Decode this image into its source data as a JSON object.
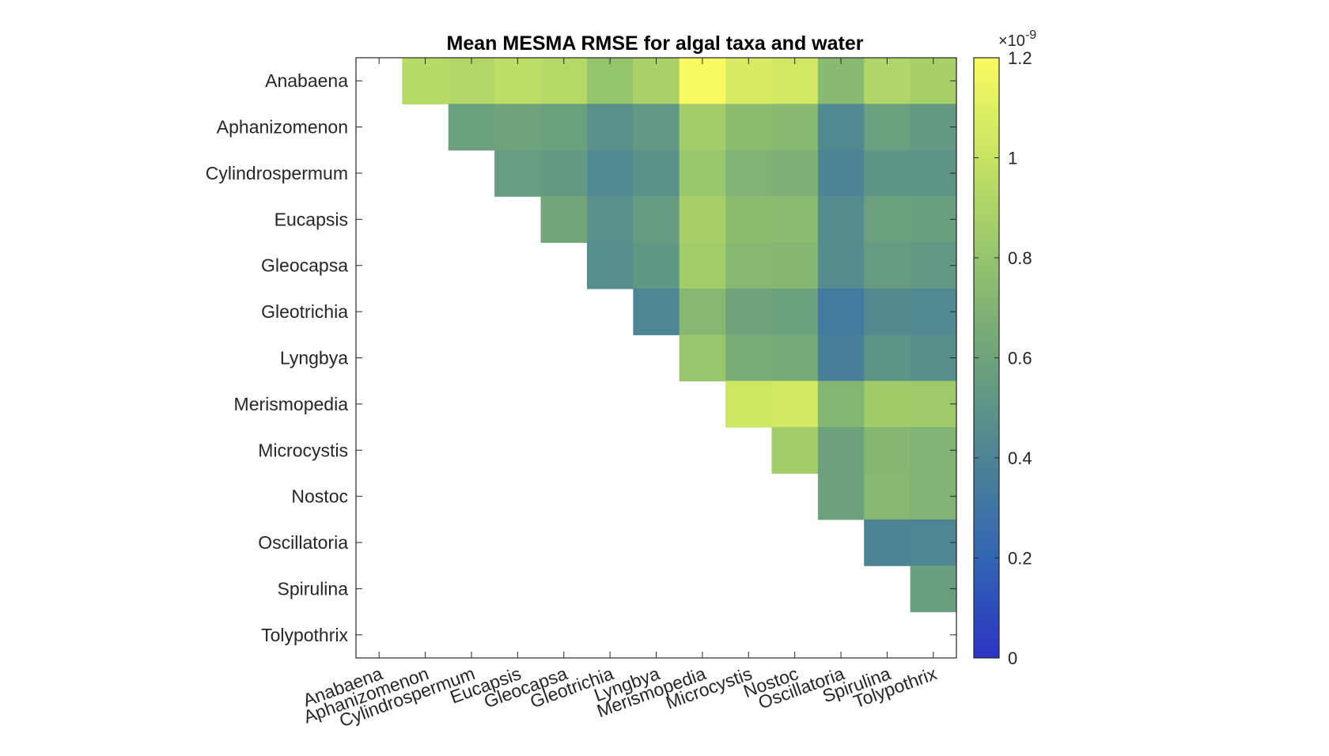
{
  "chart_data": {
    "type": "heatmap",
    "title": "Mean MESMA RMSE for algal taxa and water",
    "xlabel": "",
    "ylabel": "",
    "rows": [
      "Anabaena",
      "Aphanizomenon",
      "Cylindrospermum",
      "Eucapsis",
      "Gleocapsa",
      "Gleotrichia",
      "Lyngbya",
      "Merismopedia",
      "Microcystis",
      "Nostoc",
      "Oscillatoria",
      "Spirulina",
      "Tolypothrix"
    ],
    "columns": [
      "Anabaena",
      "Aphanizomenon",
      "Cylindrospermum",
      "Eucapsis",
      "Gleocapsa",
      "Gleotrichia",
      "Lyngbya",
      "Merismopedia",
      "Microcystis",
      "Nostoc",
      "Oscillatoria",
      "Spirulina",
      "Tolypothrix"
    ],
    "value_scale_label": "×10",
    "value_scale_exponent": "-9",
    "values_unit_multiplier": 1e-09,
    "colorbar": {
      "range": [
        0,
        1.2
      ],
      "ticks": [
        0,
        0.2,
        0.4,
        0.6,
        0.8,
        1,
        1.2
      ],
      "tick_labels": [
        "0",
        "0.2",
        "0.4",
        "0.6",
        "0.8",
        "1",
        "1.2"
      ],
      "colormap": [
        "#2c34c2",
        "#3166b3",
        "#4c8494",
        "#6ea37b",
        "#94c46c",
        "#c6e364",
        "#f9fb60"
      ]
    },
    "values": [
      [
        null,
        0.94,
        0.92,
        0.96,
        0.93,
        0.8,
        0.89,
        1.2,
        1.07,
        1.04,
        0.74,
        0.91,
        0.88
      ],
      [
        null,
        null,
        0.58,
        0.6,
        0.58,
        0.48,
        0.53,
        0.86,
        0.76,
        0.74,
        0.43,
        0.58,
        0.54
      ],
      [
        null,
        null,
        null,
        0.56,
        0.54,
        0.43,
        0.49,
        0.82,
        0.7,
        0.68,
        0.4,
        0.51,
        0.5
      ],
      [
        null,
        null,
        null,
        null,
        0.62,
        0.48,
        0.55,
        0.88,
        0.76,
        0.75,
        0.45,
        0.58,
        0.57
      ],
      [
        null,
        null,
        null,
        null,
        null,
        0.46,
        0.52,
        0.86,
        0.73,
        0.72,
        0.45,
        0.55,
        0.53
      ],
      [
        null,
        null,
        null,
        null,
        null,
        null,
        0.41,
        0.73,
        0.6,
        0.58,
        0.33,
        0.44,
        0.43
      ],
      [
        null,
        null,
        null,
        null,
        null,
        null,
        null,
        0.81,
        0.66,
        0.64,
        0.36,
        0.5,
        0.47
      ],
      [
        null,
        null,
        null,
        null,
        null,
        null,
        null,
        null,
        1.03,
        1.05,
        0.71,
        0.85,
        0.84
      ],
      [
        null,
        null,
        null,
        null,
        null,
        null,
        null,
        null,
        null,
        0.86,
        0.59,
        0.72,
        0.7
      ],
      [
        null,
        null,
        null,
        null,
        null,
        null,
        null,
        null,
        null,
        null,
        0.59,
        0.73,
        0.7
      ],
      [
        null,
        null,
        null,
        null,
        null,
        null,
        null,
        null,
        null,
        null,
        null,
        0.4,
        0.41
      ],
      [
        null,
        null,
        null,
        null,
        null,
        null,
        null,
        null,
        null,
        null,
        null,
        null,
        0.57
      ],
      [
        null,
        null,
        null,
        null,
        null,
        null,
        null,
        null,
        null,
        null,
        null,
        null,
        null
      ]
    ]
  }
}
